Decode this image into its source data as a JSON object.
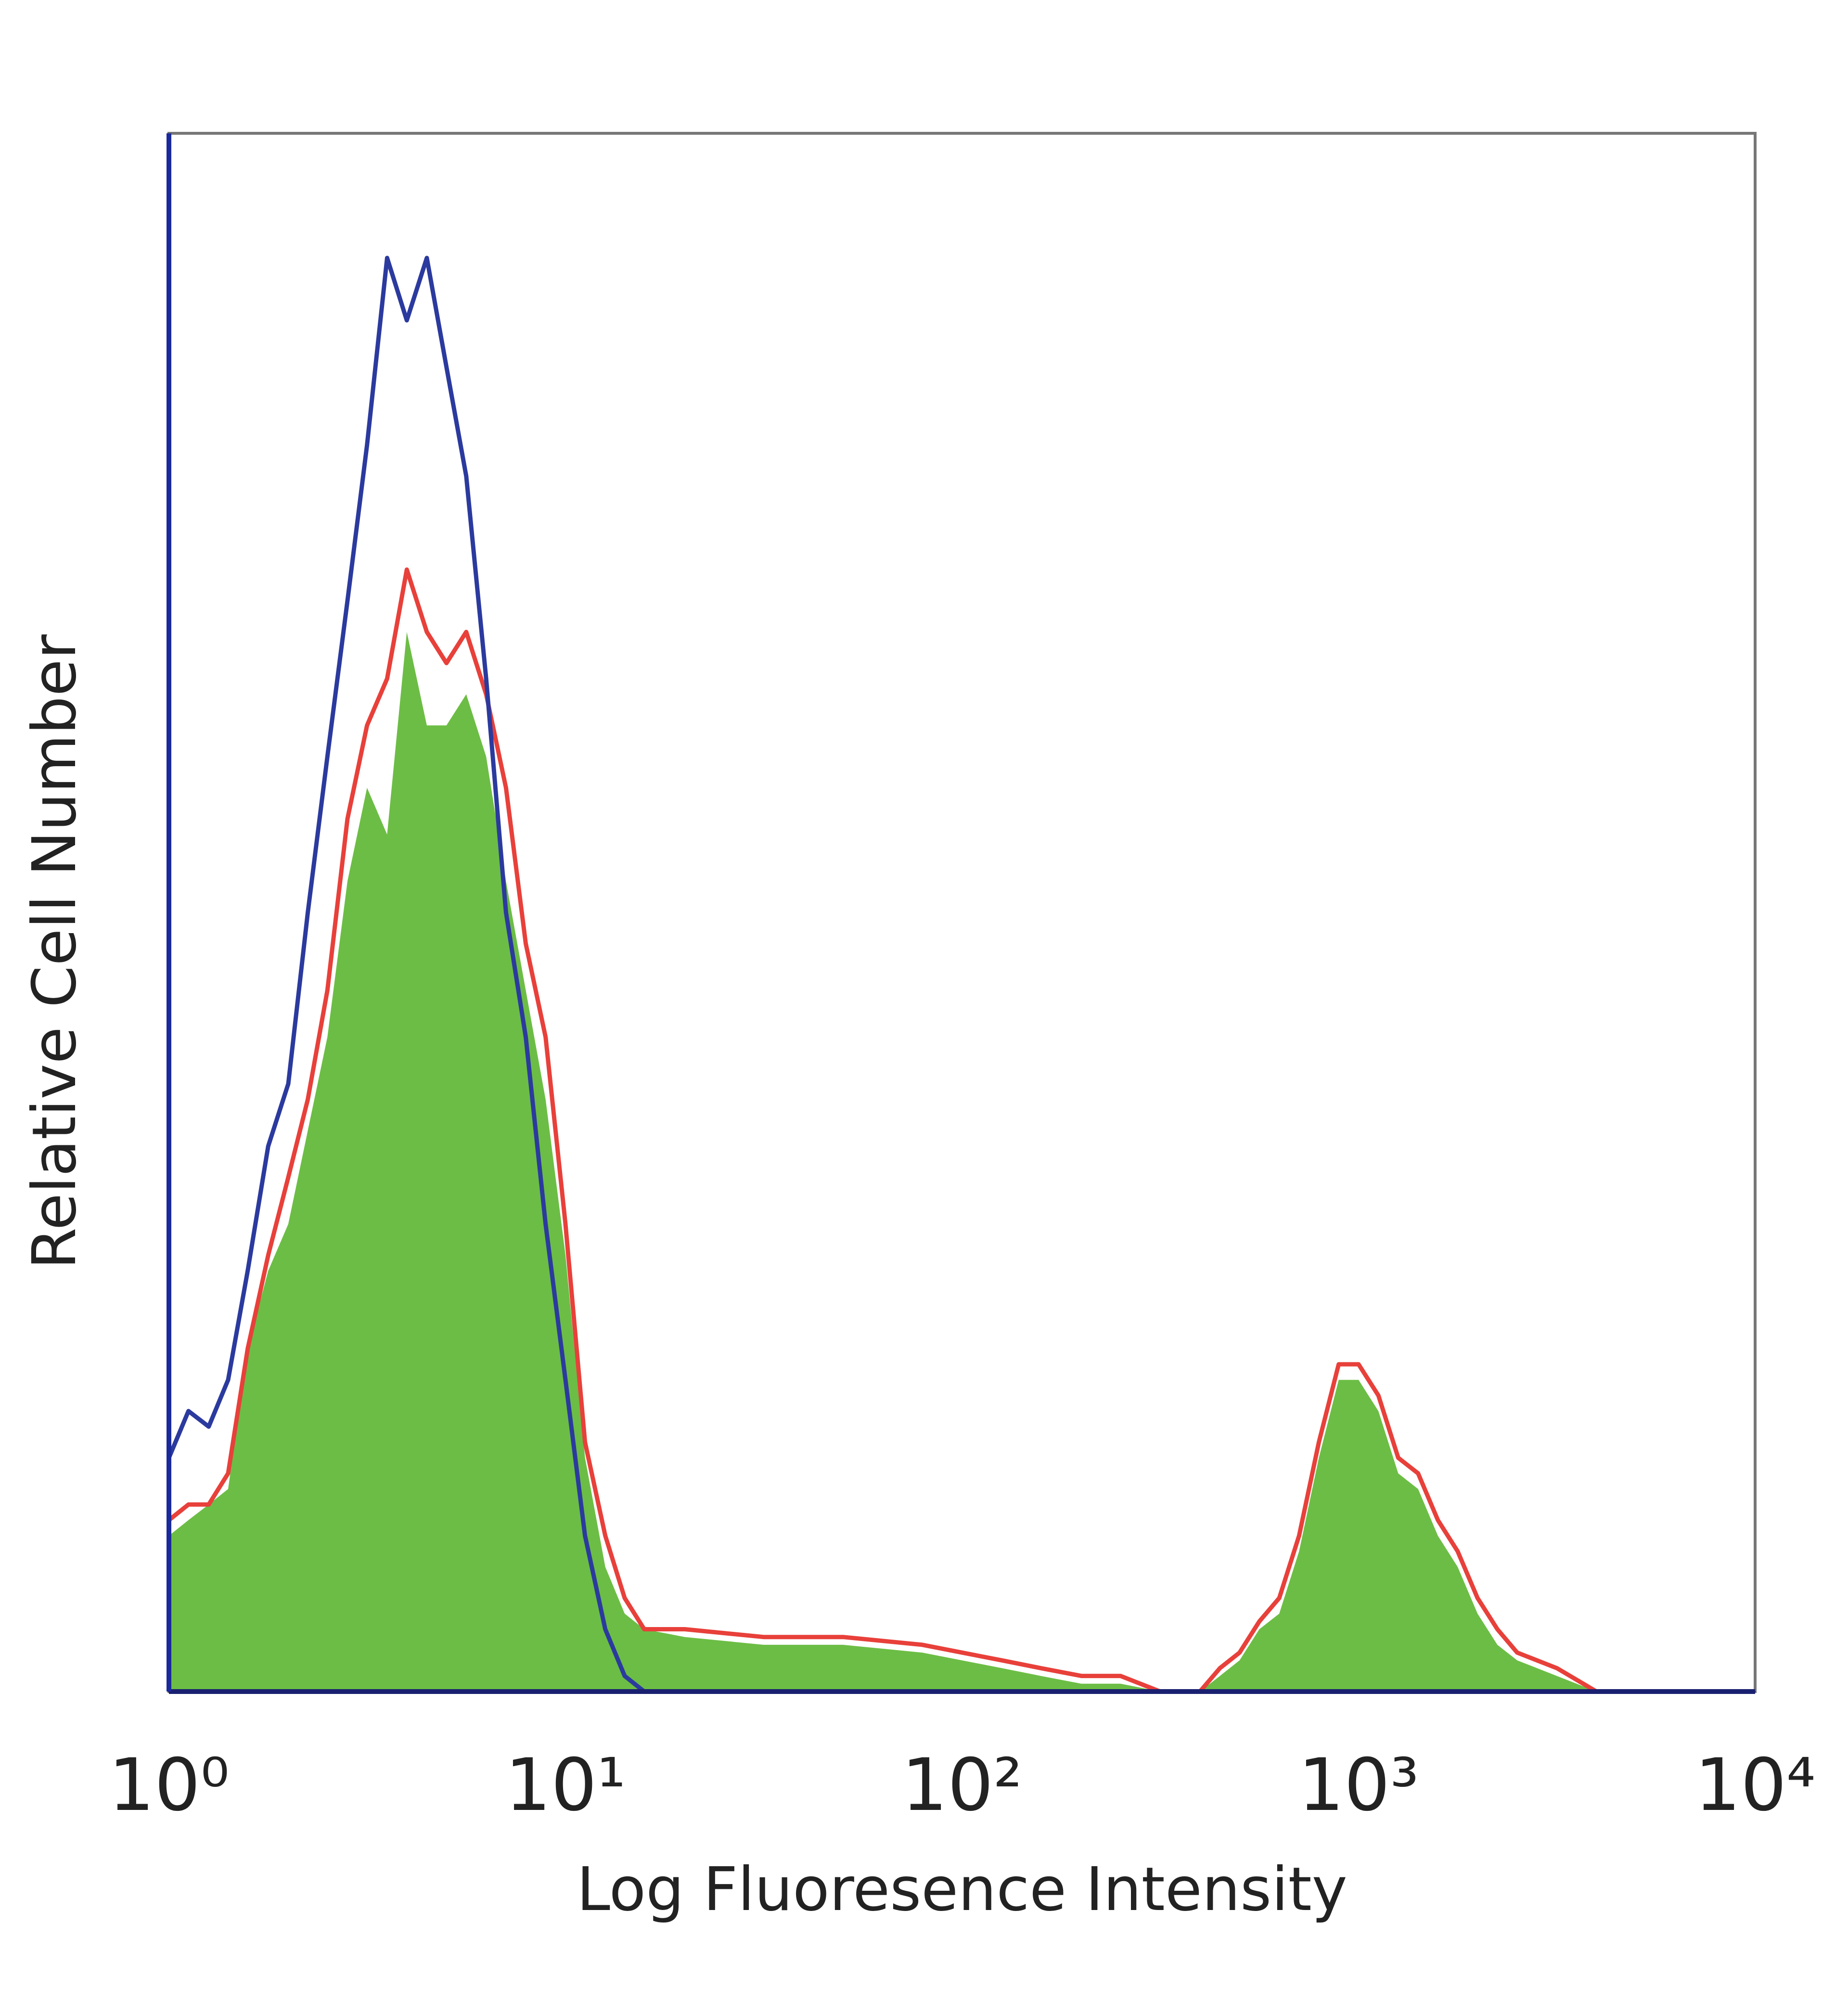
{
  "chart_data": {
    "type": "histogram-overlay",
    "xlabel": "Log Fluoresence Intensity",
    "ylabel": "Relative Cell Number",
    "xscale": "log",
    "xlim": [
      1,
      10000
    ],
    "xticks": [
      {
        "value": 1,
        "label": "10⁰"
      },
      {
        "value": 10,
        "label": "10¹"
      },
      {
        "value": 100,
        "label": "10²"
      },
      {
        "value": 1000,
        "label": "10³"
      },
      {
        "value": 10000,
        "label": "10⁴"
      }
    ],
    "ylim": [
      0,
      100
    ],
    "x": [
      1,
      1.12,
      1.26,
      1.41,
      1.58,
      1.78,
      2,
      2.24,
      2.51,
      2.82,
      3.16,
      3.55,
      3.98,
      4.47,
      5.01,
      5.62,
      6.31,
      7.08,
      7.94,
      8.91,
      10,
      11.2,
      12.6,
      14.1,
      15.8,
      20,
      31.6,
      50.1,
      79.4,
      100,
      126,
      158,
      200,
      251,
      316,
      398,
      447,
      501,
      562,
      631,
      708,
      794,
      891,
      1000,
      1122,
      1259,
      1413,
      1585,
      1778,
      1995,
      2239,
      2512,
      3162,
      3981
    ],
    "series": [
      {
        "color": "#6cbd45",
        "fill": true,
        "values": [
          10,
          11,
          12,
          13,
          22,
          27,
          30,
          36,
          42,
          52,
          58,
          55,
          68,
          62,
          62,
          64,
          60,
          52,
          45,
          38,
          28,
          15,
          8,
          5,
          4,
          3.5,
          3,
          3,
          2.5,
          2,
          1.5,
          1,
          0.5,
          0.5,
          0,
          0,
          1,
          2,
          4,
          5,
          9,
          15,
          20,
          20,
          18,
          14,
          13,
          10,
          8,
          5,
          3,
          2,
          1,
          0
        ]
      },
      {
        "color": "#e8403a",
        "fill": false,
        "values": [
          11,
          12,
          12,
          14,
          22,
          28,
          33,
          38,
          45,
          56,
          62,
          65,
          72,
          68,
          66,
          68,
          64,
          58,
          48,
          42,
          30,
          16,
          10,
          6,
          4,
          4,
          3.5,
          3.5,
          3,
          2.5,
          2,
          1.5,
          1,
          1,
          0,
          0,
          1.5,
          2.5,
          4.5,
          6,
          10,
          16,
          21,
          21,
          19,
          15,
          14,
          11,
          9,
          6,
          4,
          2.5,
          1.5,
          0
        ]
      },
      {
        "color": "#2b3a9e",
        "fill": false,
        "values": [
          15,
          18,
          17,
          20,
          27,
          35,
          39,
          50,
          60,
          70,
          80,
          92,
          88,
          92,
          85,
          78,
          65,
          50,
          42,
          30,
          20,
          10,
          4,
          1,
          0,
          0,
          0,
          0,
          0,
          0,
          0,
          0,
          0,
          0,
          0,
          0,
          0,
          0,
          0,
          0,
          0,
          0,
          0,
          0,
          0,
          0,
          0,
          0,
          0,
          0,
          0,
          0,
          0,
          0
        ]
      }
    ]
  }
}
